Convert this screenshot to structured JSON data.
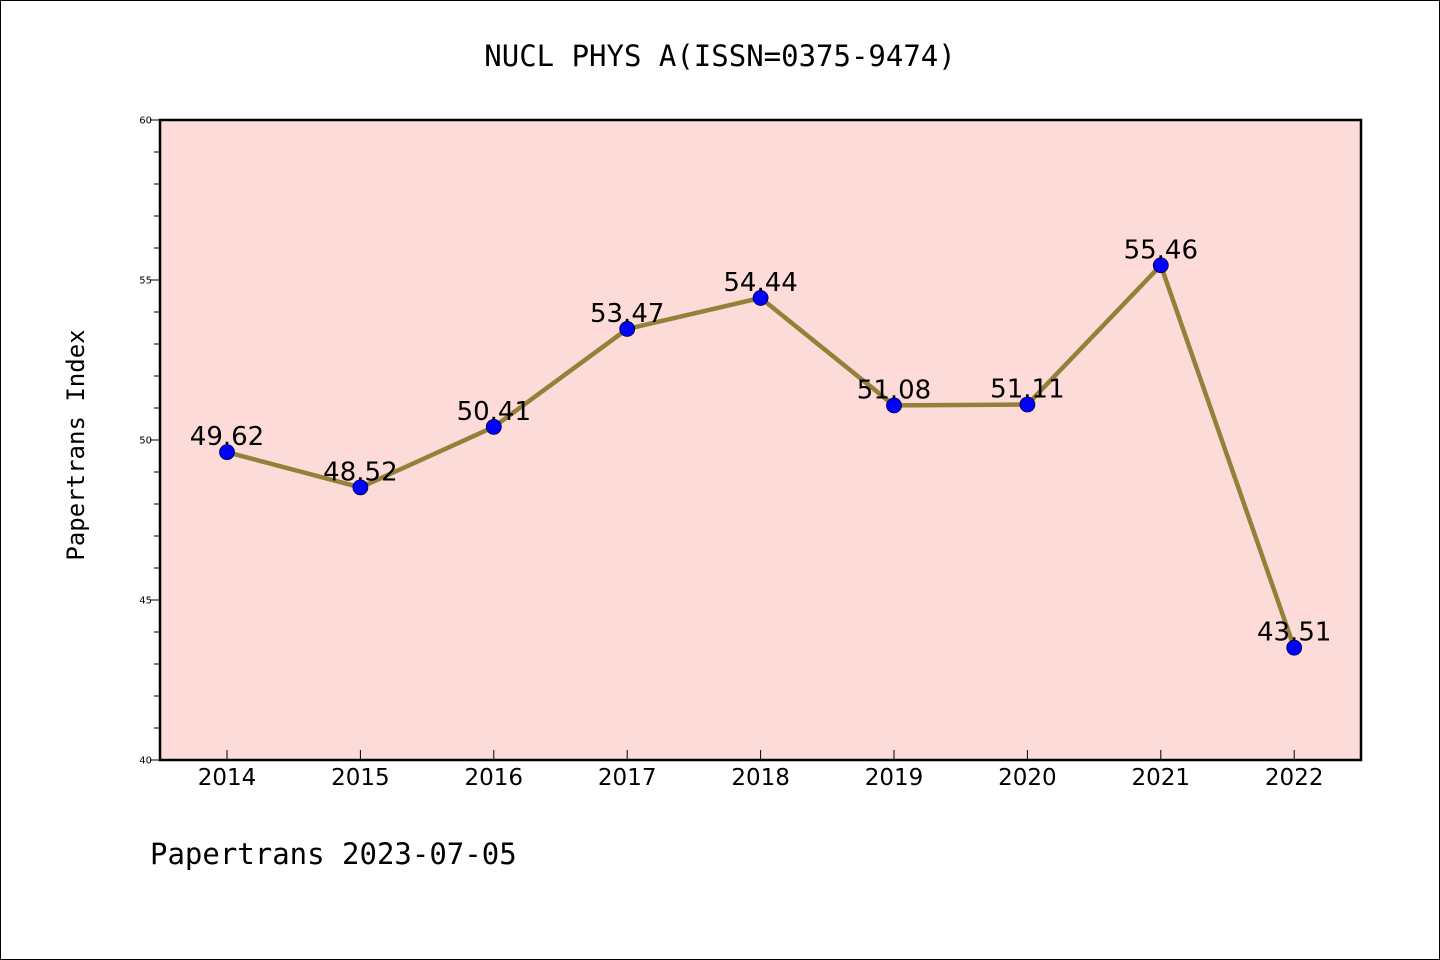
{
  "chart_data": {
    "type": "line",
    "title": "NUCL PHYS A(ISSN=0375-9474)",
    "xlabel": "",
    "ylabel": "Papertrans Index",
    "categories": [
      "2014",
      "2015",
      "2016",
      "2017",
      "2018",
      "2019",
      "2020",
      "2021",
      "2022"
    ],
    "series": [
      {
        "values": [
          49.62,
          48.52,
          50.41,
          53.47,
          54.44,
          51.08,
          51.11,
          55.46,
          43.51
        ],
        "labels": [
          "49.62",
          "48.52",
          "50.41",
          "53.47",
          "54.44",
          "51.08",
          "51.11",
          "55.46",
          "43.51"
        ]
      }
    ],
    "ylim": [
      40,
      60
    ],
    "yticks": [
      "40",
      "45",
      "50",
      "55",
      "60"
    ],
    "grid": false,
    "colors": {
      "plot_background": "#fddbd8",
      "line": "#948038",
      "marker": "#0000ff"
    }
  },
  "footer": {
    "text": "Papertrans 2023-07-05"
  }
}
